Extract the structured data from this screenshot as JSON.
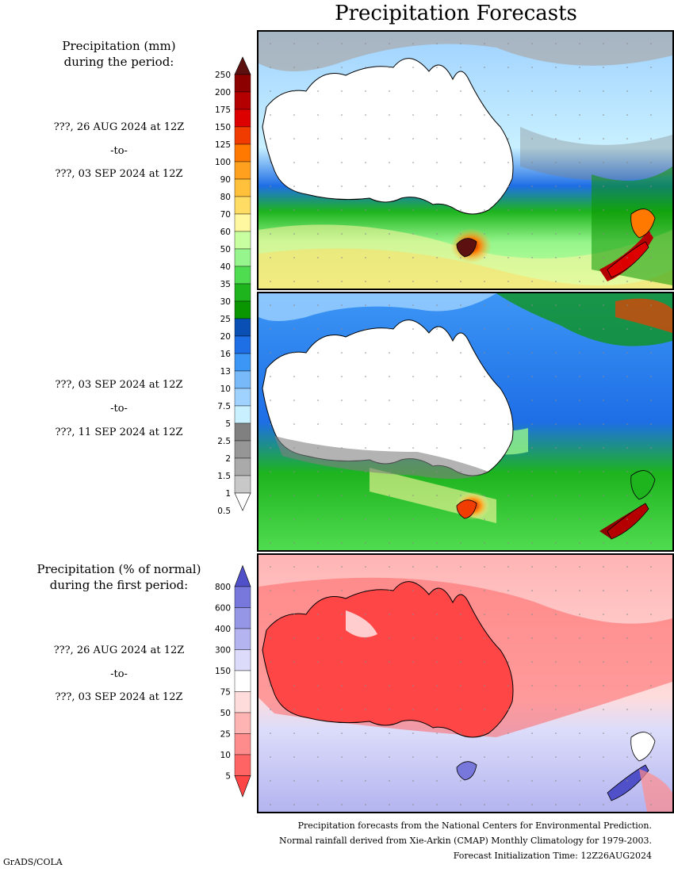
{
  "title": "Precipitation Forecasts",
  "panel1": {
    "label_line1": "Precipitation (mm)",
    "label_line2": "during the period:",
    "start": "???, 26 AUG 2024 at 12Z",
    "to": "-to-",
    "end": "???, 03 SEP 2024 at 12Z"
  },
  "panel2": {
    "start": "???, 03 SEP 2024 at 12Z",
    "to": "-to-",
    "end": "???, 11 SEP 2024 at 12Z"
  },
  "panel3": {
    "label_line1": "Precipitation (% of normal)",
    "label_line2": "during the first period:",
    "start": "???, 26 AUG 2024 at 12Z",
    "to": "-to-",
    "end": "???, 03 SEP 2024 at 12Z"
  },
  "mm_scale": {
    "ticks": [
      "250",
      "200",
      "175",
      "150",
      "125",
      "100",
      "90",
      "80",
      "70",
      "60",
      "50",
      "40",
      "35",
      "30",
      "25",
      "20",
      "16",
      "13",
      "10",
      "7.5",
      "5",
      "2.5",
      "2",
      "1.5",
      "1",
      "0.5"
    ],
    "colors": [
      "#5c1010",
      "#8c0000",
      "#b40000",
      "#dc0000",
      "#f03c00",
      "#ff7800",
      "#ffa01e",
      "#ffc03c",
      "#ffdc64",
      "#fff8a0",
      "#c8ffa0",
      "#96f58c",
      "#50dc50",
      "#1eb41e",
      "#0a9600",
      "#0a50b4",
      "#1e6ee6",
      "#3c96f5",
      "#78b9fa",
      "#a0d2ff",
      "#c8f0ff",
      "#808080",
      "#969696",
      "#aaaaaa",
      "#c8c8c8",
      "#ffffff"
    ]
  },
  "pct_scale": {
    "ticks": [
      "800",
      "600",
      "400",
      "300",
      "150",
      "75",
      "50",
      "25",
      "10",
      "5"
    ],
    "colors": [
      "#5050c8",
      "#7878dc",
      "#9696e6",
      "#b4b4f0",
      "#dcdcfa",
      "#ffffff",
      "#ffdcdc",
      "#ffb4b4",
      "#ff8c8c",
      "#ff6464",
      "#ff4646"
    ]
  },
  "footer": {
    "line1": "Precipitation forecasts from the National Centers for Environmental Prediction.",
    "line2": "Normal rainfall derived from Xie-Arkin (CMAP) Monthly Climatology for 1979-2003.",
    "line3": "Forecast Initialization Time: 12Z26AUG2024"
  },
  "credit": "GrADS/COLA"
}
